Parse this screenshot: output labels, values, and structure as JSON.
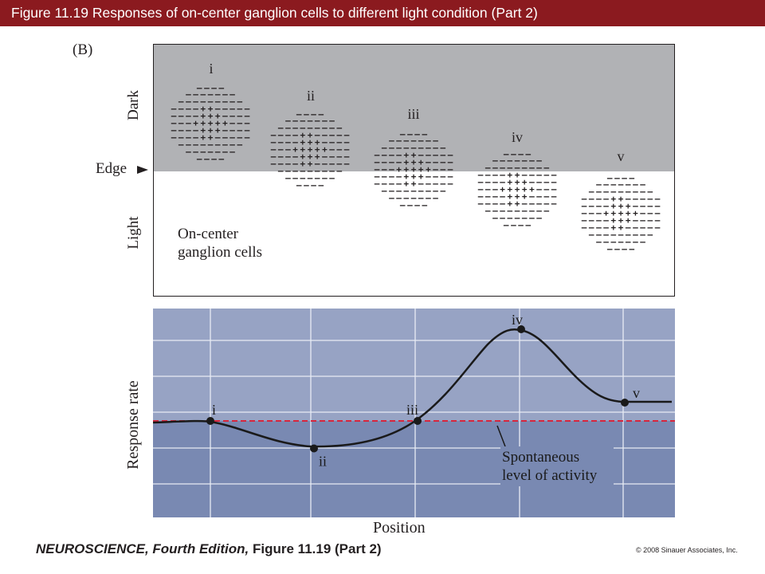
{
  "header": {
    "title": "Figure 11.19  Responses of on-center ganglion cells to different light condition (Part 2)",
    "color": "#8b1a1f"
  },
  "panel": {
    "label": "(B)",
    "dark_label": "Dark",
    "light_label": "Light",
    "edge_label": "Edge",
    "cell_label_line1": "On-center",
    "cell_label_line2": "ganglion cells",
    "dark_color": "#b1b2b5",
    "cells": [
      {
        "numeral": "i",
        "position": "dark"
      },
      {
        "numeral": "ii",
        "position": "dark, near edge"
      },
      {
        "numeral": "iii",
        "position": "on edge"
      },
      {
        "numeral": "iv",
        "position": "light, near edge"
      },
      {
        "numeral": "v",
        "position": "light"
      }
    ]
  },
  "chart_data": {
    "type": "line",
    "title": "",
    "xlabel": "Position",
    "ylabel": "Response rate",
    "spontaneous_label_line1": "Spontaneous",
    "spontaneous_label_line2": "level of activity",
    "baseline_color": "#d7263d",
    "upper_band_color": "#97a3c4",
    "lower_band_color": "#7989b2",
    "grid": true,
    "points": [
      {
        "label": "i",
        "x": 1,
        "y": 0
      },
      {
        "label": "ii",
        "x": 2,
        "y": -0.3
      },
      {
        "label": "iii",
        "x": 3,
        "y": 0
      },
      {
        "label": "iv",
        "x": 4,
        "y": 1
      },
      {
        "label": "v",
        "x": 5,
        "y": 0.2
      }
    ]
  },
  "footer": {
    "book": "NEUROSCIENCE, Fourth Edition,",
    "figure": "Figure 11.19 (Part 2)",
    "copyright": "© 2008 Sinauer Associates, Inc."
  }
}
